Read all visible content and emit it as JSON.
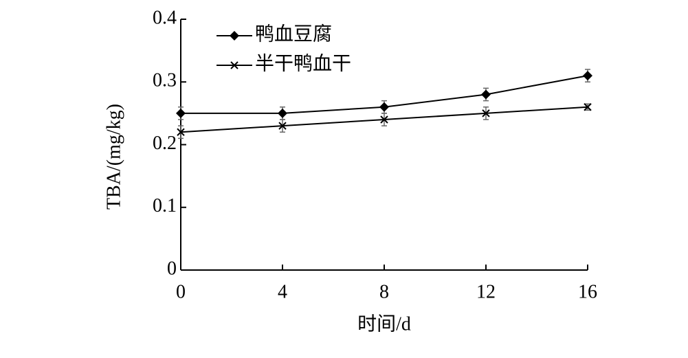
{
  "chart_data": {
    "type": "line",
    "x_label": "时间/d",
    "y_label": "TBA/(mg/kg)",
    "x": [
      0,
      4,
      8,
      12,
      16
    ],
    "series": [
      {
        "name": "鸭血豆腐",
        "color": "#000000",
        "marker": "diamond",
        "values": [
          0.25,
          0.25,
          0.26,
          0.28,
          0.31
        ],
        "errors": [
          0.01,
          0.01,
          0.01,
          0.01,
          0.01
        ]
      },
      {
        "name": "半干鸭血干",
        "color": "#000000",
        "marker": "x",
        "values": [
          0.22,
          0.23,
          0.24,
          0.25,
          0.26
        ],
        "errors": [
          0.01,
          0.01,
          0.01,
          0.01,
          0.005
        ]
      }
    ],
    "xlim": [
      0,
      16
    ],
    "xticks": [
      0,
      4,
      8,
      12,
      16
    ],
    "ylim": [
      0,
      0.4
    ],
    "yticks": [
      0,
      0.1,
      0.2,
      0.3,
      0.4
    ],
    "grid": false,
    "legend": "upper left"
  }
}
